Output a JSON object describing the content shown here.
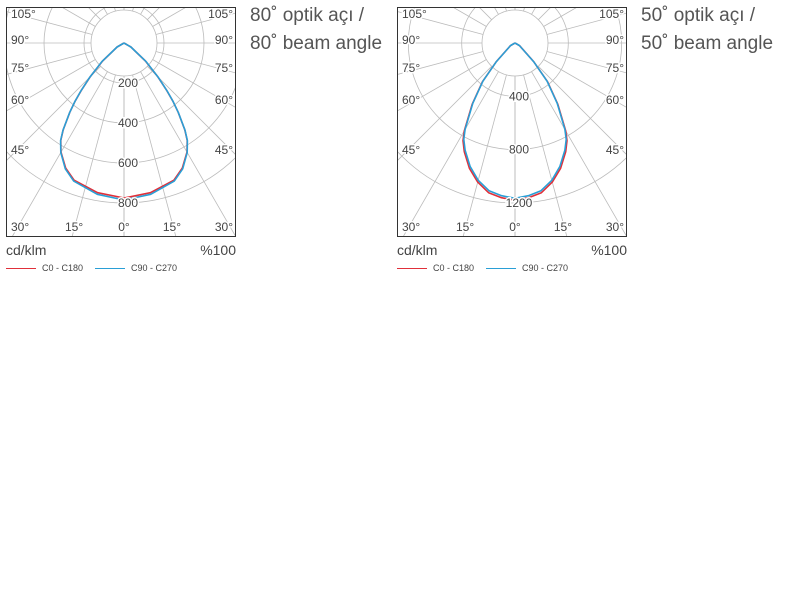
{
  "chart_data": [
    {
      "type": "polar",
      "title": [
        "80˚ optik açı /",
        "80˚ beam angle"
      ],
      "unit_label": "cd/klm",
      "scale_label": "%100",
      "rmax": 800,
      "rings": [
        200,
        400,
        600,
        800
      ],
      "ring_labels": [
        "200",
        "400",
        "600",
        "800"
      ],
      "angle_labels_left": [
        "105°",
        "90°",
        "75°",
        "60°",
        "45°",
        "30°",
        "15°"
      ],
      "angle_labels_right": [
        "105°",
        "90°",
        "75°",
        "60°",
        "45°",
        "30°",
        "15°"
      ],
      "angle_label_center": "0°",
      "angles_deg": [
        0,
        10,
        20,
        25,
        30,
        33,
        35,
        38,
        40,
        42,
        45,
        50,
        60,
        90
      ],
      "series": [
        {
          "name": "C0 - C180",
          "color": "#e0303a",
          "values": [
            775,
            760,
            730,
            690,
            630,
            580,
            530,
            440,
            380,
            320,
            240,
            140,
            40,
            0
          ]
        },
        {
          "name": "C90 - C270",
          "color": "#2a9fd6",
          "values": [
            785,
            768,
            735,
            694,
            632,
            582,
            532,
            442,
            382,
            322,
            242,
            142,
            40,
            0
          ]
        }
      ]
    },
    {
      "type": "polar",
      "title": [
        "50˚ optik açı /",
        "50˚ beam angle"
      ],
      "unit_label": "cd/klm",
      "scale_label": "%100",
      "rmax": 1200,
      "rings": [
        400,
        800,
        1200
      ],
      "ring_labels": [
        "400",
        "800",
        "1200"
      ],
      "angle_labels_left": [
        "105°",
        "90°",
        "75°",
        "60°",
        "45°",
        "30°",
        "15°"
      ],
      "angle_labels_right": [
        "105°",
        "90°",
        "75°",
        "60°",
        "45°",
        "30°",
        "15°"
      ],
      "angle_label_center": "0°",
      "angles_deg": [
        0,
        5,
        10,
        15,
        20,
        25,
        28,
        30,
        35,
        40,
        45,
        60,
        90
      ],
      "series": [
        {
          "name": "C0 - C180",
          "color": "#e0303a",
          "values": [
            1180,
            1165,
            1140,
            1080,
            1000,
            900,
            830,
            760,
            560,
            380,
            200,
            40,
            0
          ]
        },
        {
          "name": "C90 - C270",
          "color": "#2a9fd6",
          "values": [
            1165,
            1150,
            1125,
            1066,
            985,
            886,
            818,
            748,
            552,
            374,
            197,
            38,
            0
          ]
        }
      ]
    }
  ]
}
